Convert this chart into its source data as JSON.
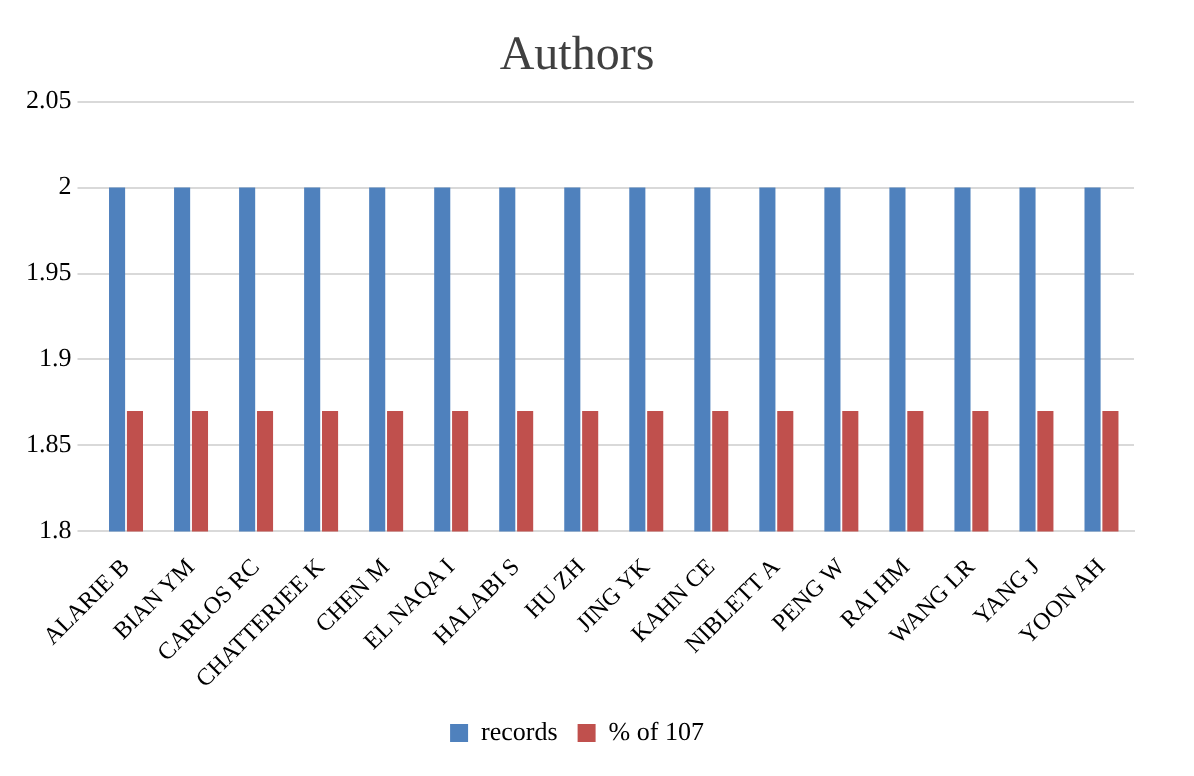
{
  "chart_data": {
    "type": "bar",
    "title": "Authors",
    "categories": [
      "ALARIE B",
      "BIAN YM",
      "CARLOS RC",
      "CHATTERJEE K",
      "CHEN M",
      "EL NAQA I",
      "HALABI S",
      "HU ZH",
      "JING YK",
      "KAHN CE",
      "NIBLETT A",
      "PENG W",
      "RAI HM",
      "WANG LR",
      "YANG J",
      "YOON AH"
    ],
    "series": [
      {
        "name": "records",
        "color": "#4f81bd",
        "values": [
          2,
          2,
          2,
          2,
          2,
          2,
          2,
          2,
          2,
          2,
          2,
          2,
          2,
          2,
          2,
          2
        ]
      },
      {
        "name": "% of 107",
        "color": "#c0504d",
        "values": [
          1.87,
          1.87,
          1.87,
          1.87,
          1.87,
          1.87,
          1.87,
          1.87,
          1.87,
          1.87,
          1.87,
          1.87,
          1.87,
          1.87,
          1.87,
          1.87
        ]
      }
    ],
    "ylim": [
      1.8,
      2.05
    ],
    "yticks": [
      1.8,
      1.85,
      1.9,
      1.95,
      2,
      2.05
    ],
    "grid": "y",
    "legend": "bottom"
  }
}
